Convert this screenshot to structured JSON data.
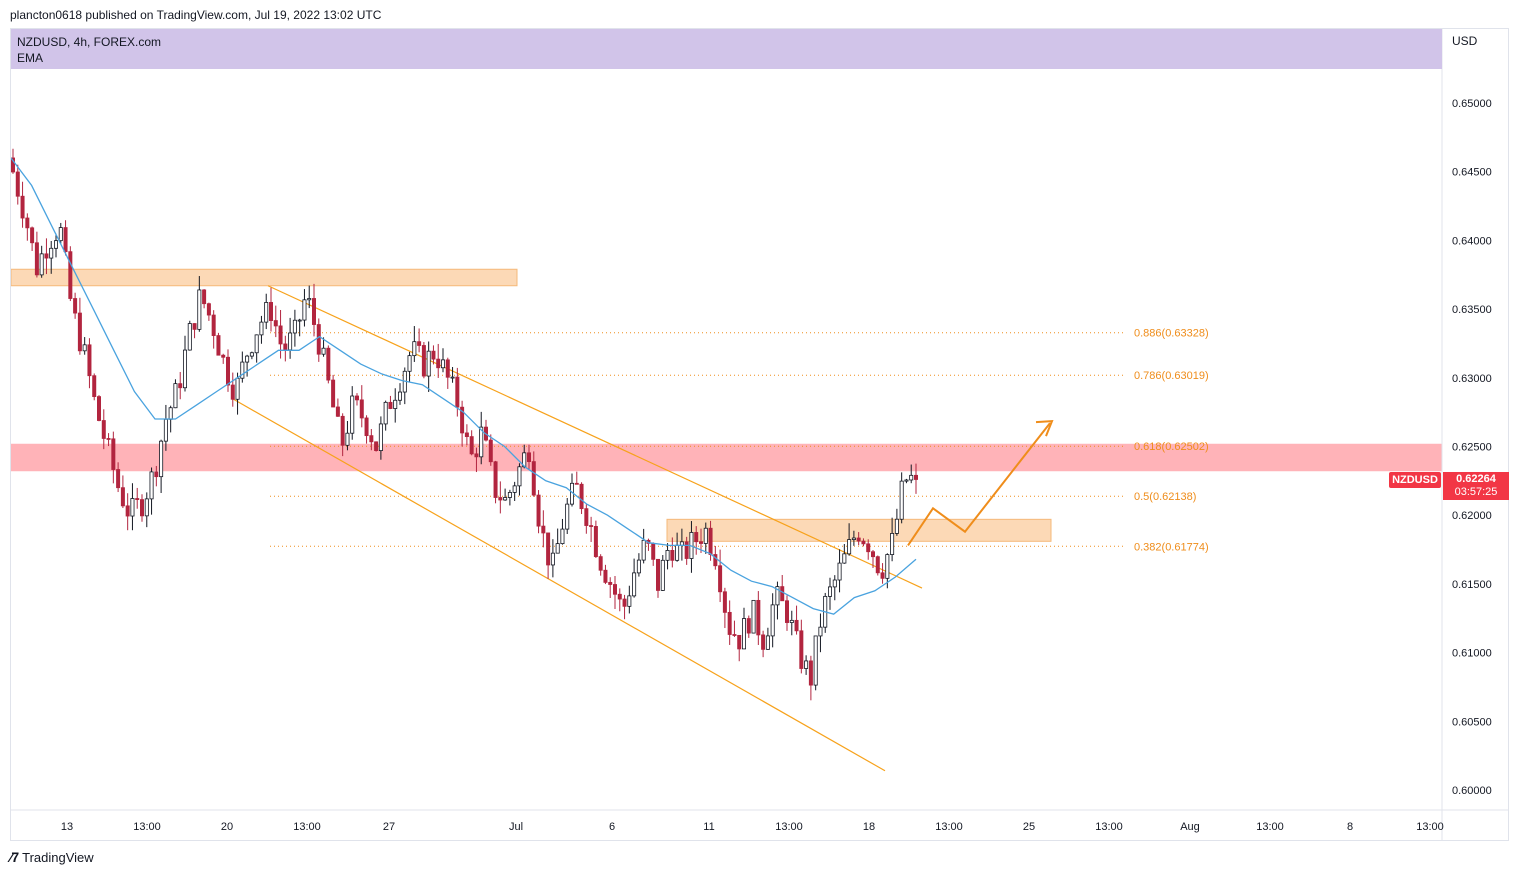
{
  "publish_line": "plancton0618 published on TradingView.com, Jul 19, 2022 13:02 UTC",
  "legend": {
    "symbol_line": "NZDUSD, 4h, FOREX.com",
    "indicator": "EMA"
  },
  "currency": "USD",
  "footer_brand": "TradingView",
  "last_price": {
    "symbol": "NZDUSD",
    "price": "0.62264",
    "countdown": "03:57:25"
  },
  "colors": {
    "up": "#131722",
    "down": "#b2253f",
    "ema": "#4aa3df",
    "channel": "#f7a21b",
    "resistance_zone": "#ffb3b8",
    "demand_zone": "#fcd9b6",
    "fib": "#ef8d1b",
    "banner": "#d1c4e9"
  },
  "chart_data": {
    "type": "candlestick",
    "title": "NZDUSD, 4h, FOREX.com",
    "y_axis": {
      "label": "USD",
      "ticks": [
        "0.65000",
        "0.64500",
        "0.64000",
        "0.63500",
        "0.63000",
        "0.62500",
        "0.62000",
        "0.61500",
        "0.61000",
        "0.60500",
        "0.60000"
      ],
      "range": [
        0.5996,
        0.6533
      ]
    },
    "x_axis": {
      "ticks": [
        "13",
        "13:00",
        "20",
        "13:00",
        "27",
        "Jul",
        "6",
        "11",
        "13:00",
        "18",
        "13:00",
        "25",
        "13:00",
        "Aug",
        "13:00",
        "8",
        "13:00"
      ]
    },
    "price_series": {
      "name": "NZDUSD",
      "path_values": [
        0.645,
        0.642,
        0.638,
        0.64,
        0.641,
        0.635,
        0.632,
        0.628,
        0.625,
        0.622,
        0.62,
        0.621,
        0.623,
        0.627,
        0.629,
        0.633,
        0.636,
        0.634,
        0.631,
        0.629,
        0.632,
        0.634,
        0.635,
        0.632,
        0.633,
        0.636,
        0.633,
        0.629,
        0.625,
        0.628,
        0.627,
        0.625,
        0.628,
        0.63,
        0.632,
        0.631,
        0.632,
        0.63,
        0.628,
        0.624,
        0.626,
        0.622,
        0.621,
        0.623,
        0.625,
        0.619,
        0.616,
        0.62,
        0.622,
        0.62,
        0.617,
        0.615,
        0.613,
        0.616,
        0.618,
        0.615,
        0.618,
        0.617,
        0.618,
        0.619,
        0.617,
        0.612,
        0.611,
        0.613,
        0.611,
        0.614,
        0.613,
        0.61,
        0.608,
        0.613,
        0.615,
        0.617,
        0.619,
        0.618,
        0.616,
        0.618,
        0.6226,
        0.6226
      ]
    },
    "ema_series": {
      "name": "EMA",
      "path_values": [
        0.646,
        0.644,
        0.641,
        0.638,
        0.635,
        0.632,
        0.629,
        0.627,
        0.627,
        0.628,
        0.629,
        0.63,
        0.631,
        0.632,
        0.632,
        0.633,
        0.632,
        0.631,
        0.6303,
        0.6298,
        0.6295,
        0.6285,
        0.6275,
        0.626,
        0.625,
        0.6235,
        0.6225,
        0.622,
        0.6208,
        0.62,
        0.619,
        0.618,
        0.6178,
        0.6178,
        0.6172,
        0.616,
        0.6152,
        0.6148,
        0.614,
        0.6132,
        0.6128,
        0.614,
        0.6145,
        0.6155,
        0.6168
      ]
    },
    "channel": {
      "upper": [
        [
          0.6367,
          0.6147
        ]
      ],
      "lower": [
        [
          0.6285,
          0.6014
        ]
      ]
    },
    "zones": [
      {
        "name": "resistance",
        "top": 0.6252,
        "bottom": 0.6232
      },
      {
        "name": "upper-supply",
        "top": 0.6379,
        "bottom": 0.6367
      },
      {
        "name": "demand",
        "top": 0.6197,
        "bottom": 0.6181
      }
    ],
    "fibonacci": [
      {
        "level": "0.886",
        "price": 0.63328,
        "label": "0.886(0.63328)"
      },
      {
        "level": "0.786",
        "price": 0.63019,
        "label": "0.786(0.63019)"
      },
      {
        "level": "0.618",
        "price": 0.62502,
        "label": "0.618(0.62502)"
      },
      {
        "level": "0.5",
        "price": 0.62138,
        "label": "0.5(0.62138)"
      },
      {
        "level": "0.382",
        "price": 0.61774,
        "label": "0.382(0.61774)"
      }
    ],
    "projection_path": [
      0.6178,
      0.6205,
      0.6188,
      0.6267
    ]
  }
}
